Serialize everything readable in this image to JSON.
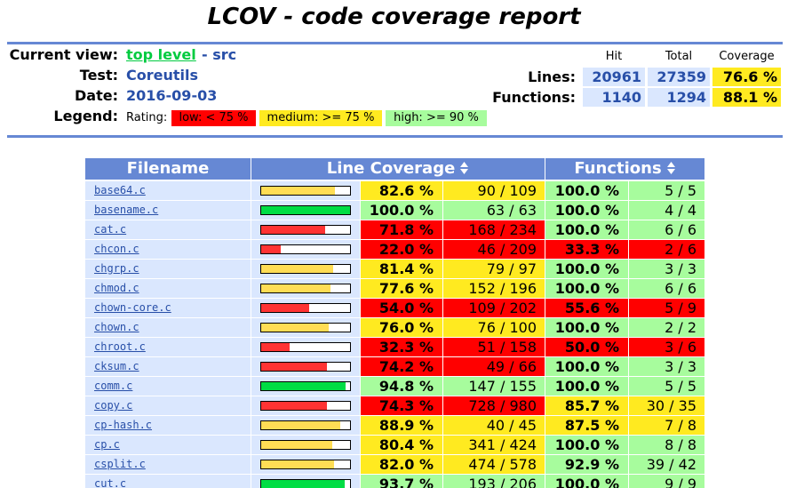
{
  "header": {
    "title": "LCOV - code coverage report",
    "current_view_label": "Current view:",
    "current_view_link": "top level",
    "current_view_rest": "- src",
    "test_label": "Test:",
    "test": "Coreutils",
    "date_label": "Date:",
    "date": "2016-09-03",
    "legend_label": "Legend:",
    "rating_label": "Rating:",
    "legend": [
      {
        "label": "low: < 75 %",
        "color": "#ff0000"
      },
      {
        "label": "medium: >= 75 %",
        "color": "#ffea20"
      },
      {
        "label": "high: >= 90 %",
        "color": "#a7fc9d"
      }
    ],
    "summary": {
      "columns": [
        "Hit",
        "Total",
        "Coverage"
      ],
      "rows": [
        {
          "label": "Lines:",
          "hit": "20961",
          "total": "27359",
          "coverage": "76.6 %",
          "color": "#ffea20"
        },
        {
          "label": "Functions:",
          "hit": "1140",
          "total": "1294",
          "coverage": "88.1 %",
          "color": "#ffea20"
        }
      ]
    }
  },
  "table": {
    "columns": [
      "Filename",
      "Line Coverage",
      "Functions"
    ],
    "bar_colors": {
      "#ff0000": "#ff3333",
      "#ffea20": "#ffdd55",
      "#a7fc9d": "#00dd44"
    },
    "rows": [
      {
        "file": "base64.c",
        "line_coverage": "82.6 %",
        "lines": "90 / 109",
        "line_color": "#ffea20",
        "func_coverage": "100.0 %",
        "funcs": "5 / 5",
        "func_color": "#a7fc9d"
      },
      {
        "file": "basename.c",
        "line_coverage": "100.0 %",
        "lines": "63 / 63",
        "line_color": "#a7fc9d",
        "func_coverage": "100.0 %",
        "funcs": "4 / 4",
        "func_color": "#a7fc9d"
      },
      {
        "file": "cat.c",
        "line_coverage": "71.8 %",
        "lines": "168 / 234",
        "line_color": "#ff0000",
        "func_coverage": "100.0 %",
        "funcs": "6 / 6",
        "func_color": "#a7fc9d"
      },
      {
        "file": "chcon.c",
        "line_coverage": "22.0 %",
        "lines": "46 / 209",
        "line_color": "#ff0000",
        "func_coverage": "33.3 %",
        "funcs": "2 / 6",
        "func_color": "#ff0000"
      },
      {
        "file": "chgrp.c",
        "line_coverage": "81.4 %",
        "lines": "79 / 97",
        "line_color": "#ffea20",
        "func_coverage": "100.0 %",
        "funcs": "3 / 3",
        "func_color": "#a7fc9d"
      },
      {
        "file": "chmod.c",
        "line_coverage": "77.6 %",
        "lines": "152 / 196",
        "line_color": "#ffea20",
        "func_coverage": "100.0 %",
        "funcs": "6 / 6",
        "func_color": "#a7fc9d"
      },
      {
        "file": "chown-core.c",
        "line_coverage": "54.0 %",
        "lines": "109 / 202",
        "line_color": "#ff0000",
        "func_coverage": "55.6 %",
        "funcs": "5 / 9",
        "func_color": "#ff0000"
      },
      {
        "file": "chown.c",
        "line_coverage": "76.0 %",
        "lines": "76 / 100",
        "line_color": "#ffea20",
        "func_coverage": "100.0 %",
        "funcs": "2 / 2",
        "func_color": "#a7fc9d"
      },
      {
        "file": "chroot.c",
        "line_coverage": "32.3 %",
        "lines": "51 / 158",
        "line_color": "#ff0000",
        "func_coverage": "50.0 %",
        "funcs": "3 / 6",
        "func_color": "#ff0000"
      },
      {
        "file": "cksum.c",
        "line_coverage": "74.2 %",
        "lines": "49 / 66",
        "line_color": "#ff0000",
        "func_coverage": "100.0 %",
        "funcs": "3 / 3",
        "func_color": "#a7fc9d"
      },
      {
        "file": "comm.c",
        "line_coverage": "94.8 %",
        "lines": "147 / 155",
        "line_color": "#a7fc9d",
        "func_coverage": "100.0 %",
        "funcs": "5 / 5",
        "func_color": "#a7fc9d"
      },
      {
        "file": "copy.c",
        "line_coverage": "74.3 %",
        "lines": "728 / 980",
        "line_color": "#ff0000",
        "func_coverage": "85.7 %",
        "funcs": "30 / 35",
        "func_color": "#ffea20"
      },
      {
        "file": "cp-hash.c",
        "line_coverage": "88.9 %",
        "lines": "40 / 45",
        "line_color": "#ffea20",
        "func_coverage": "87.5 %",
        "funcs": "7 / 8",
        "func_color": "#ffea20"
      },
      {
        "file": "cp.c",
        "line_coverage": "80.4 %",
        "lines": "341 / 424",
        "line_color": "#ffea20",
        "func_coverage": "100.0 %",
        "funcs": "8 / 8",
        "func_color": "#a7fc9d"
      },
      {
        "file": "csplit.c",
        "line_coverage": "82.0 %",
        "lines": "474 / 578",
        "line_color": "#ffea20",
        "func_coverage": "92.9 %",
        "funcs": "39 / 42",
        "func_color": "#a7fc9d"
      },
      {
        "file": "cut.c",
        "line_coverage": "93.7 %",
        "lines": "193 / 206",
        "line_color": "#a7fc9d",
        "func_coverage": "100.0 %",
        "funcs": "9 / 9",
        "func_color": "#a7fc9d"
      }
    ]
  }
}
